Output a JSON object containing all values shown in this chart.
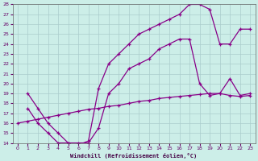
{
  "xlabel": "Windchill (Refroidissement éolien,°C)",
  "bg_color": "#cceee8",
  "line_color": "#880088",
  "grid_color": "#aacccc",
  "xlim": [
    -0.5,
    23.5
  ],
  "ylim": [
    14,
    28
  ],
  "xticks": [
    0,
    1,
    2,
    3,
    4,
    5,
    6,
    7,
    8,
    9,
    10,
    11,
    12,
    13,
    14,
    15,
    16,
    17,
    18,
    19,
    20,
    21,
    22,
    23
  ],
  "yticks": [
    14,
    15,
    16,
    17,
    18,
    19,
    20,
    21,
    22,
    23,
    24,
    25,
    26,
    27,
    28
  ],
  "line1_x": [
    1,
    2,
    3,
    4,
    5,
    6,
    7,
    8,
    9,
    10,
    11,
    12,
    13,
    14,
    15,
    16,
    17,
    18,
    19,
    20,
    21,
    22,
    23
  ],
  "line1_y": [
    19.0,
    17.5,
    16.0,
    15.0,
    14.0,
    13.8,
    14.2,
    19.5,
    22.0,
    23.0,
    24.0,
    25.0,
    25.5,
    26.0,
    26.5,
    27.0,
    28.0,
    28.0,
    27.5,
    24.0,
    24.0,
    25.5,
    25.5
  ],
  "line2_x": [
    1,
    2,
    3,
    4,
    5,
    6,
    7,
    8,
    9,
    10,
    11,
    12,
    13,
    14,
    15,
    16,
    17,
    18,
    19,
    20,
    21,
    22,
    23
  ],
  "line2_y": [
    17.5,
    16.0,
    15.0,
    14.0,
    14.0,
    14.0,
    14.0,
    15.5,
    19.0,
    20.0,
    21.5,
    22.0,
    22.5,
    23.5,
    24.0,
    24.5,
    24.5,
    20.0,
    18.8,
    19.0,
    20.5,
    18.8,
    19.0
  ],
  "line3_x": [
    0,
    1,
    2,
    3,
    4,
    5,
    6,
    7,
    8,
    9,
    10,
    11,
    12,
    13,
    14,
    15,
    16,
    17,
    18,
    19,
    20,
    21,
    22,
    23
  ],
  "line3_y": [
    16.0,
    16.2,
    16.4,
    16.6,
    16.8,
    17.0,
    17.2,
    17.4,
    17.5,
    17.7,
    17.8,
    18.0,
    18.2,
    18.3,
    18.5,
    18.6,
    18.7,
    18.8,
    18.9,
    19.0,
    19.0,
    18.8,
    18.7,
    18.8
  ]
}
